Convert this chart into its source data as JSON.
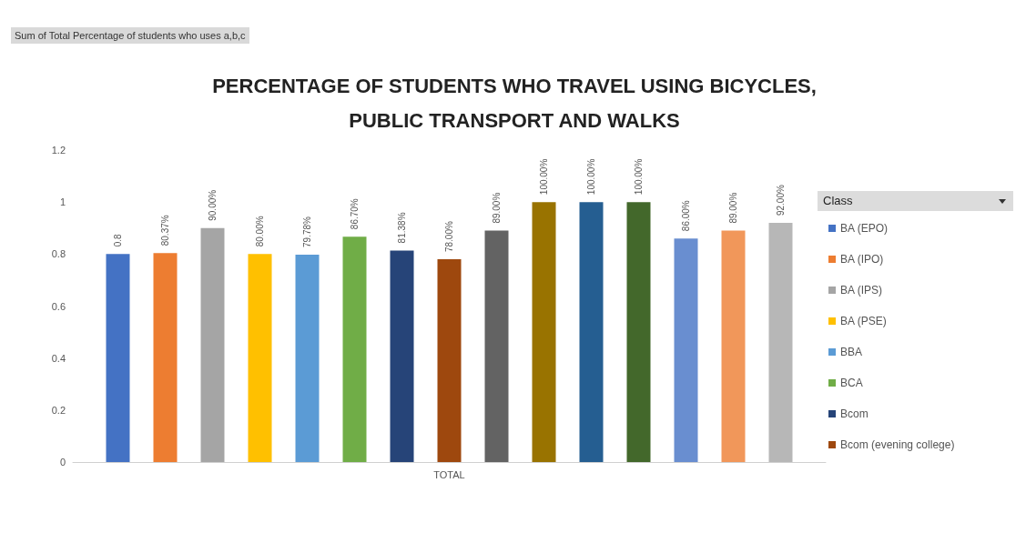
{
  "chart_data": {
    "type": "bar",
    "title": "PERCENTAGE OF STUDENTS WHO TRAVEL USING BICYCLES,PUBLIC TRANSPORT AND WALKS",
    "annotations": [
      "Sum of Total Percentage of students who uses a,b,c"
    ],
    "legend_title": "Class",
    "categories": [
      "TOTAL"
    ],
    "series": [
      {
        "name": "BA (EPO)",
        "color": "#4472c4",
        "values": [
          0.8
        ],
        "value_labels": [
          "0.8"
        ]
      },
      {
        "name": "BA (IPO)",
        "color": "#ed7d31",
        "values": [
          0.8037
        ],
        "value_labels": [
          "80.37%"
        ]
      },
      {
        "name": "BA (IPS)",
        "color": "#a5a5a5",
        "values": [
          0.9
        ],
        "value_labels": [
          "90.00%"
        ]
      },
      {
        "name": "BA (PSE)",
        "color": "#ffc000",
        "values": [
          0.8
        ],
        "value_labels": [
          "80.00%"
        ]
      },
      {
        "name": "BBA",
        "color": "#5b9bd5",
        "values": [
          0.7978
        ],
        "value_labels": [
          "79.78%"
        ]
      },
      {
        "name": "BCA",
        "color": "#70ad47",
        "values": [
          0.867
        ],
        "value_labels": [
          "86.70%"
        ]
      },
      {
        "name": "Bcom",
        "color": "#264478",
        "values": [
          0.8138
        ],
        "value_labels": [
          "81.38%"
        ]
      },
      {
        "name": "Bcom (evening college)",
        "color": "#9e480e",
        "values": [
          0.78
        ],
        "value_labels": [
          "78.00%"
        ]
      },
      {
        "color": "#636363",
        "values": [
          0.89
        ],
        "value_labels": [
          "89.00%"
        ]
      },
      {
        "color": "#997300",
        "values": [
          1
        ],
        "value_labels": [
          "100.00%"
        ]
      },
      {
        "color": "#255e91",
        "values": [
          1
        ],
        "value_labels": [
          "100.00%"
        ]
      },
      {
        "color": "#43682b",
        "values": [
          1
        ],
        "value_labels": [
          "100.00%"
        ]
      },
      {
        "color": "#698ed0",
        "values": [
          0.86
        ],
        "value_labels": [
          "86.00%"
        ]
      },
      {
        "color": "#f1975a",
        "values": [
          0.89
        ],
        "value_labels": [
          "89.00%"
        ]
      },
      {
        "color": "#b7b7b7",
        "values": [
          0.92
        ],
        "value_labels": [
          "92.00%"
        ]
      }
    ],
    "ylim": [
      0,
      1.2
    ],
    "yticks": [
      0,
      0.2,
      0.4,
      0.6,
      0.8,
      1,
      1.2
    ],
    "grid": false,
    "legend": "right"
  }
}
